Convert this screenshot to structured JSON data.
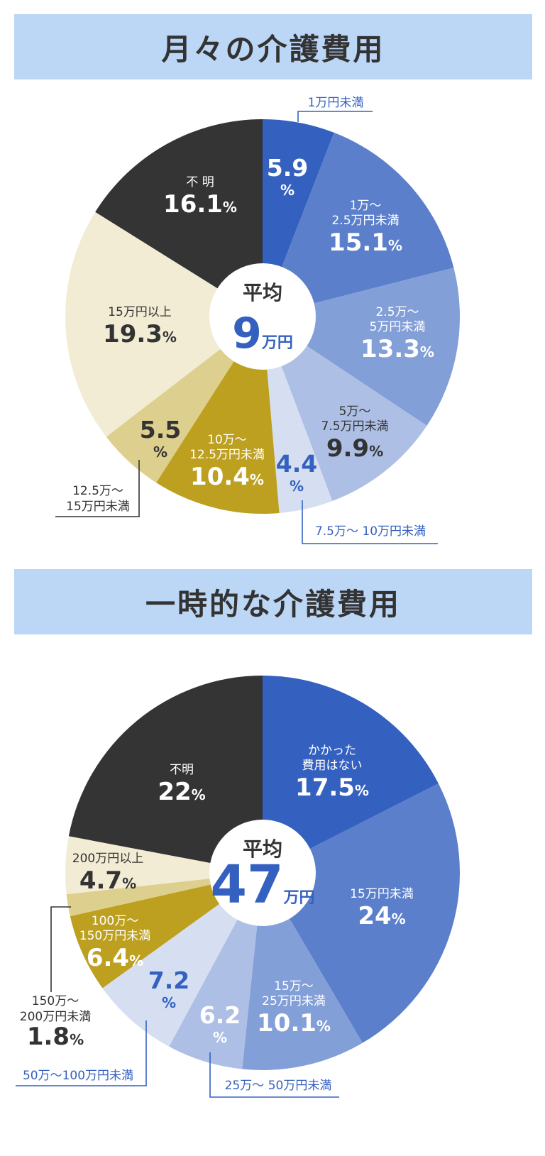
{
  "chart_data": [
    {
      "type": "pie",
      "title": "月々の介護費用",
      "center": {
        "label": "平均",
        "value": "9",
        "unit": "万円"
      },
      "unit": "%",
      "slices": [
        {
          "name": "1万円未満",
          "label_lines": [],
          "value": 5.9,
          "value_text": "5.9",
          "color": "#3461c0"
        },
        {
          "name": "1万〜2.5万円未満",
          "label_lines": [
            "1万〜",
            "2.5万円未満"
          ],
          "value": 15.1,
          "value_text": "15.1",
          "color": "#5b7fcb"
        },
        {
          "name": "2.5万〜5万円未満",
          "label_lines": [
            "2.5万〜",
            "5万円未満"
          ],
          "value": 13.3,
          "value_text": "13.3",
          "color": "#839fd8"
        },
        {
          "name": "5万〜7.5万円未満",
          "label_lines": [
            "5万〜",
            "7.5万円未満"
          ],
          "value": 9.9,
          "value_text": "9.9",
          "color": "#aebfe5"
        },
        {
          "name": "7.5万〜10万円未満",
          "label_lines": [],
          "value": 4.4,
          "value_text": "4.4",
          "color": "#d5dff1"
        },
        {
          "name": "10万〜12.5万円未満",
          "label_lines": [
            "10万〜",
            "12.5万円未満"
          ],
          "value": 10.4,
          "value_text": "10.4",
          "color": "#bda020"
        },
        {
          "name": "12.5万〜15万円未満",
          "label_lines": [],
          "value": 5.5,
          "value_text": "5.5",
          "color": "#ddd08e"
        },
        {
          "name": "15万円以上",
          "label_lines": [
            "15万円以上"
          ],
          "value": 19.3,
          "value_text": "19.3",
          "color": "#f2ecd4"
        },
        {
          "name": "不明",
          "label_lines": [
            "不 明"
          ],
          "value": 16.1,
          "value_text": "16.1",
          "color": "#343434"
        }
      ],
      "callouts": [
        {
          "slice": 0,
          "lines": [
            "1万円未満"
          ]
        },
        {
          "slice": 4,
          "lines": [
            "7.5万〜 10万円未満"
          ]
        },
        {
          "slice": 6,
          "lines": [
            "12.5万〜",
            "15万円未満"
          ]
        }
      ]
    },
    {
      "type": "pie",
      "title": "一時的な介護費用",
      "center": {
        "label": "平均",
        "value": "47",
        "unit": "万円"
      },
      "unit": "%",
      "slices": [
        {
          "name": "かかった費用はない",
          "label_lines": [
            "かかった",
            "費用はない"
          ],
          "value": 17.5,
          "value_text": "17.5",
          "color": "#3461c0"
        },
        {
          "name": "15万円未満",
          "label_lines": [
            "15万円未満"
          ],
          "value": 24,
          "value_text": "24",
          "color": "#5b7fcb"
        },
        {
          "name": "15万〜25万円未満",
          "label_lines": [
            "15万〜",
            "25万円未満"
          ],
          "value": 10.1,
          "value_text": "10.1",
          "color": "#839fd8"
        },
        {
          "name": "25万〜50万円未満",
          "label_lines": [],
          "value": 6.2,
          "value_text": "6.2",
          "color": "#aebfe5"
        },
        {
          "name": "50万〜100万円未満",
          "label_lines": [],
          "value": 7.2,
          "value_text": "7.2",
          "color": "#d5dff1"
        },
        {
          "name": "100万〜150万円未満",
          "label_lines": [
            "100万〜",
            "150万円未満"
          ],
          "value": 6.4,
          "value_text": "6.4",
          "color": "#bda020"
        },
        {
          "name": "150万〜200万円未満",
          "label_lines": [],
          "value": 1.8,
          "value_text": "1.8",
          "color": "#ddd08e"
        },
        {
          "name": "200万円以上",
          "label_lines": [
            "200万円以上"
          ],
          "value": 4.7,
          "value_text": "4.7",
          "color": "#f2ecd4"
        },
        {
          "name": "不明",
          "label_lines": [
            "不明"
          ],
          "value": 22,
          "value_text": "22",
          "color": "#343434"
        }
      ],
      "callouts": [
        {
          "slice": 3,
          "lines": [
            "25万〜 50万円未満"
          ]
        },
        {
          "slice": 4,
          "lines": [
            "50万〜100万円未満"
          ]
        },
        {
          "slice": 6,
          "lines": [
            "150万〜",
            "200万円未満"
          ],
          "value_text": "1.8"
        }
      ]
    }
  ]
}
